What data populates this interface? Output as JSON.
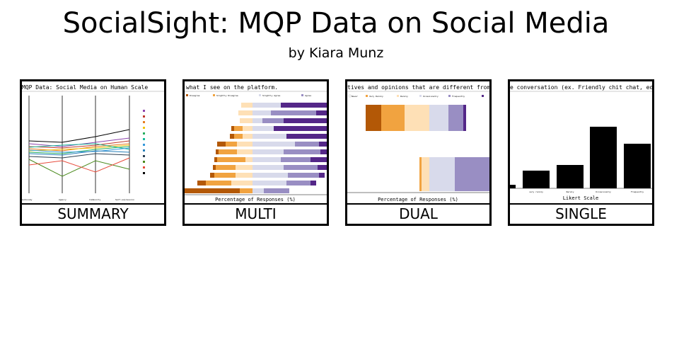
{
  "header": {
    "title": "SocialSight: MQP Data on Social Media",
    "subtitle": "by Kiara Munz"
  },
  "cards": [
    {
      "label": "SUMMARY",
      "preview": {
        "title": "MQP Data: Social Media on Human Scale",
        "x_labels": [
          "Autonomy",
          "Agency",
          "Community",
          "Self-expression"
        ]
      }
    },
    {
      "label": "MULTI",
      "preview": {
        "title": "what I see on the platform.",
        "legend": [
          "Disagree",
          "Slightly Disagree",
          "Slightly Agree",
          "Agree"
        ],
        "x_label": "Percentage of Responses (%)"
      }
    },
    {
      "label": "DUAL",
      "preview": {
        "title": "tives and opinions that are different from m",
        "legend": [
          "Never",
          "Very Rarely",
          "Rarely",
          "Occasionally",
          "Frequently"
        ],
        "x_label": "Percentage of Responses (%)"
      }
    },
    {
      "label": "SINGLE",
      "preview": {
        "title": "e conversation (ex. Friendly chit chat, educ",
        "categories": [
          "very rarely",
          "Rarely",
          "Occasionally",
          "Frequently"
        ],
        "x_label": "Likert Scale"
      }
    }
  ]
}
